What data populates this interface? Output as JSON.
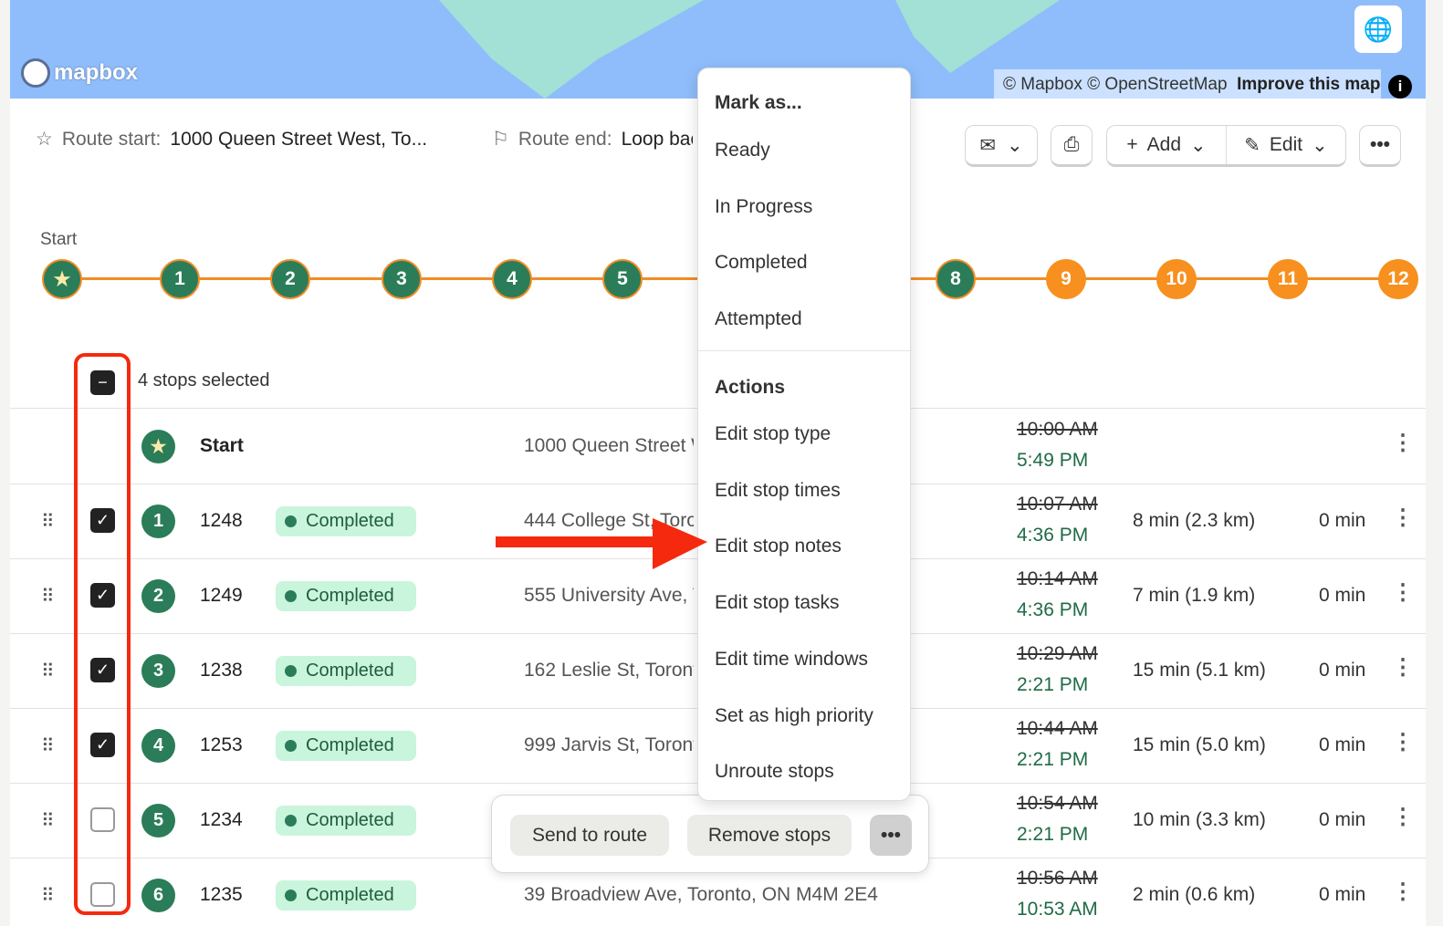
{
  "map": {
    "logo": "mapbox",
    "attribution": "© Mapbox © OpenStreetMap",
    "improve": "Improve this map",
    "info": "i"
  },
  "route": {
    "start_label": "Route start:",
    "start_value": "1000 Queen Street West, To...",
    "end_label": "Route end:",
    "end_value": "Loop back to start"
  },
  "toolbar": {
    "add": "Add",
    "edit": "Edit"
  },
  "timeline": {
    "start_label": "Start",
    "stops": [
      {
        "label": "1",
        "color": "green"
      },
      {
        "label": "2",
        "color": "green"
      },
      {
        "label": "3",
        "color": "green"
      },
      {
        "label": "4",
        "color": "green"
      },
      {
        "label": "5",
        "color": "green"
      },
      {
        "label": "8",
        "color": "green"
      },
      {
        "label": "9",
        "color": "orange"
      },
      {
        "label": "10",
        "color": "orange"
      },
      {
        "label": "11",
        "color": "orange"
      },
      {
        "label": "12",
        "color": "orange"
      }
    ]
  },
  "selection": {
    "text": "4 stops selected"
  },
  "rows": [
    {
      "num": "",
      "id": "Start",
      "status": "",
      "address": "1000 Queen Street West, Toronto, ON M6J 1H1",
      "planned": "10:00 AM",
      "actual": "5:49 PM",
      "distance": "",
      "wait": "",
      "checked": null
    },
    {
      "num": "1",
      "id": "1248",
      "status": "Completed",
      "address": "444 College St, Toronto",
      "planned": "10:07 AM",
      "actual": "4:36 PM",
      "distance": "8 min (2.3 km)",
      "wait": "0 min",
      "checked": true
    },
    {
      "num": "2",
      "id": "1249",
      "status": "Completed",
      "address": "555 University Ave, Toronto 8",
      "planned": "10:14 AM",
      "actual": "4:36 PM",
      "distance": "7 min (1.9 km)",
      "wait": "0 min",
      "checked": true
    },
    {
      "num": "3",
      "id": "1238",
      "status": "Completed",
      "address": "162 Leslie St, Toronto",
      "planned": "10:29 AM",
      "actual": "2:21 PM",
      "distance": "15 min (5.1 km)",
      "wait": "0 min",
      "checked": true
    },
    {
      "num": "4",
      "id": "1253",
      "status": "Completed",
      "address": "999 Jarvis St, Toronto",
      "planned": "10:44 AM",
      "actual": "2:21 PM",
      "distance": "15 min (5.0 km)",
      "wait": "0 min",
      "checked": true
    },
    {
      "num": "5",
      "id": "1234",
      "status": "Completed",
      "address": "",
      "planned": "10:54 AM",
      "actual": "2:21 PM",
      "distance": "10 min (3.3 km)",
      "wait": "0 min",
      "checked": false
    },
    {
      "num": "6",
      "id": "1235",
      "status": "Completed",
      "address": "39 Broadview Ave, Toronto, ON M4M 2E4",
      "planned": "10:56 AM",
      "actual": "10:53 AM",
      "distance": "2 min (0.6 km)",
      "wait": "0 min",
      "checked": false
    }
  ],
  "menu": {
    "mark_header": "Mark as...",
    "mark_items": [
      "Ready",
      "In Progress",
      "Completed",
      "Attempted"
    ],
    "actions_header": "Actions",
    "action_items": [
      "Edit stop type",
      "Edit stop times",
      "Edit stop notes",
      "Edit stop tasks",
      "Edit time windows",
      "Set as high priority",
      "Unroute stops"
    ]
  },
  "bulk_bar": {
    "send": "Send to route",
    "remove": "Remove stops",
    "more": "•••"
  },
  "colors": {
    "green": "#2a7d58",
    "orange": "#f7901e",
    "annotation": "#f5290e"
  }
}
